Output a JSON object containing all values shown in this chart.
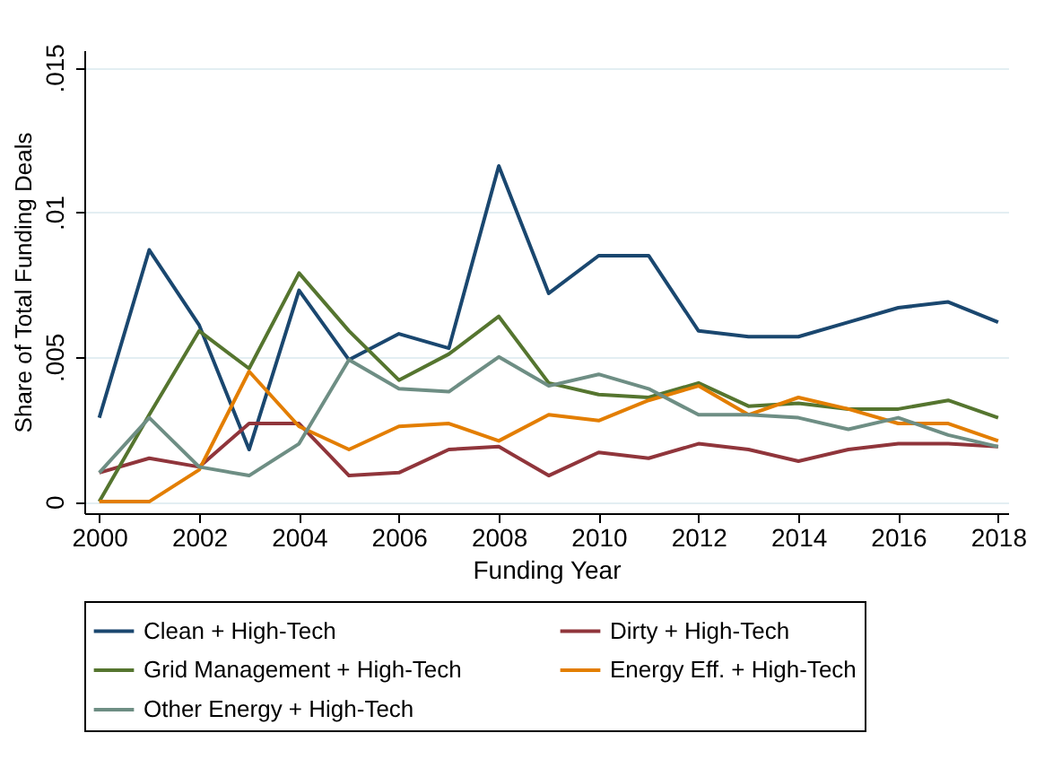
{
  "chart_data": {
    "type": "line",
    "xlabel": "Funding Year",
    "ylabel": "Share of Total Funding Deals",
    "x": [
      2000,
      2001,
      2002,
      2003,
      2004,
      2005,
      2006,
      2007,
      2008,
      2009,
      2010,
      2011,
      2012,
      2013,
      2014,
      2015,
      2016,
      2017,
      2018
    ],
    "series": [
      {
        "name": "Clean + High-Tech",
        "color": "#1a476f",
        "values": [
          0.0029,
          0.0087,
          0.0061,
          0.0018,
          0.0073,
          0.0049,
          0.0058,
          0.0053,
          0.0116,
          0.0072,
          0.0085,
          0.0085,
          0.0059,
          0.0057,
          0.0057,
          0.0062,
          0.0067,
          0.0069,
          0.0062
        ]
      },
      {
        "name": "Dirty + High-Tech",
        "color": "#90353b",
        "values": [
          0.001,
          0.0015,
          0.0012,
          0.0027,
          0.0027,
          0.0009,
          0.001,
          0.0018,
          0.0019,
          0.0009,
          0.0017,
          0.0015,
          0.002,
          0.0018,
          0.0014,
          0.0018,
          0.002,
          0.002,
          0.0019
        ]
      },
      {
        "name": "Grid Management + High-Tech",
        "color": "#55752f",
        "values": [
          0,
          0.003,
          0.0059,
          0.0046,
          0.0079,
          0.0059,
          0.0042,
          0.0051,
          0.0064,
          0.0041,
          0.0037,
          0.0036,
          0.0041,
          0.0033,
          0.0034,
          0.0032,
          0.0032,
          0.0035,
          0.0029
        ]
      },
      {
        "name": "Energy Eff. + High-Tech",
        "color": "#e37e00",
        "values": [
          0,
          0,
          0.0011,
          0.0045,
          0.0026,
          0.0018,
          0.0026,
          0.0027,
          0.0021,
          0.003,
          0.0028,
          0.0035,
          0.004,
          0.003,
          0.0036,
          0.0032,
          0.0027,
          0.0027,
          0.0021
        ]
      },
      {
        "name": "Other Energy + High-Tech",
        "color": "#6e8e84",
        "values": [
          0.001,
          0.0029,
          0.0012,
          0.0009,
          0.002,
          0.0049,
          0.0039,
          0.0038,
          0.005,
          0.004,
          0.0044,
          0.0039,
          0.003,
          0.003,
          0.0029,
          0.0025,
          0.0029,
          0.0023,
          0.0019
        ]
      }
    ],
    "xlim": [
      1999.7,
      2018.2
    ],
    "xticks": [
      2000,
      2002,
      2004,
      2006,
      2008,
      2010,
      2012,
      2014,
      2016,
      2018
    ],
    "ylim": [
      -0.0004,
      0.0156
    ],
    "yticks": [
      {
        "value": 0,
        "label": "0"
      },
      {
        "value": 0.005,
        "label": ".005"
      },
      {
        "value": 0.01,
        "label": ".01"
      },
      {
        "value": 0.015,
        "label": ".015"
      }
    ],
    "grid": "y",
    "legend": "bottom",
    "line_style": "solid",
    "marker": "none"
  }
}
